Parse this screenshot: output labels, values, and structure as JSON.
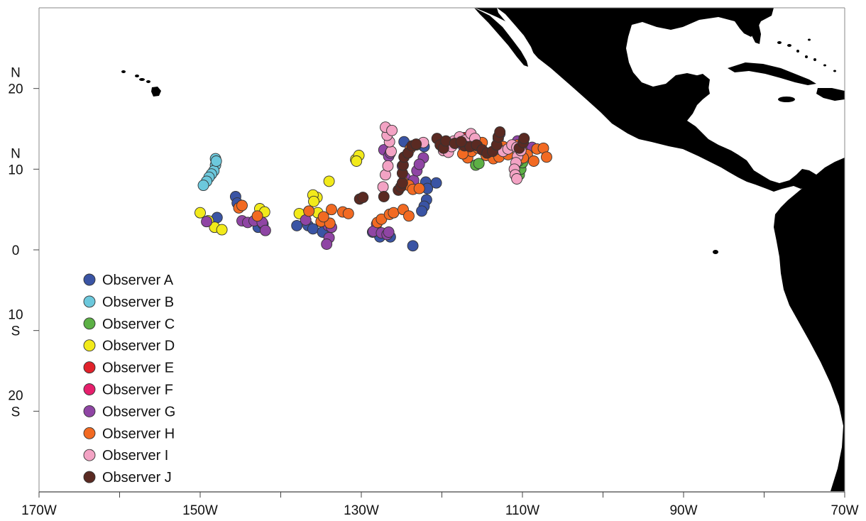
{
  "map": {
    "x_ticks": [
      "170W",
      "150W",
      "130W",
      "110W",
      "90W",
      "70W"
    ],
    "y_ticks": [
      {
        "top": "N",
        "bottom": "20",
        "lat": 20
      },
      {
        "top": "N",
        "bottom": "10",
        "lat": 10
      },
      {
        "top": "",
        "bottom": "0",
        "lat": 0
      },
      {
        "top": "10",
        "bottom": "S",
        "lat": -10
      },
      {
        "top": "20",
        "bottom": "S",
        "lat": -20
      }
    ],
    "land_color": "#000000",
    "extent": {
      "lon": [
        -170,
        -70
      ],
      "lat": [
        -30,
        30
      ]
    }
  },
  "legend": {
    "items": [
      {
        "label": "Observer A",
        "color": "#3a54a4"
      },
      {
        "label": "Observer B",
        "color": "#6cc8dc"
      },
      {
        "label": "Observer C",
        "color": "#5cb045"
      },
      {
        "label": "Observer D",
        "color": "#f2ea1a"
      },
      {
        "label": "Observer E",
        "color": "#e1222b"
      },
      {
        "label": "Observer F",
        "color": "#e61f6c"
      },
      {
        "label": "Observer G",
        "color": "#8f45a4"
      },
      {
        "label": "Observer H",
        "color": "#f26a22"
      },
      {
        "label": "Observer I",
        "color": "#f3a3c4"
      },
      {
        "label": "Observer J",
        "color": "#5a2a22"
      }
    ]
  },
  "observations": {
    "Observer A": [
      [
        -147.9,
        4.0
      ],
      [
        -145.6,
        6.6
      ],
      [
        -145.4,
        5.8
      ],
      [
        -142.8,
        2.8
      ],
      [
        -142.2,
        3.2
      ],
      [
        -138.0,
        3.0
      ],
      [
        -136.6,
        3.0
      ],
      [
        -136.0,
        2.6
      ],
      [
        -134.8,
        2.2
      ],
      [
        -124.7,
        13.4
      ],
      [
        -122.2,
        12.8
      ],
      [
        -122.0,
        8.4
      ],
      [
        -121.8,
        7.6
      ],
      [
        -121.9,
        6.2
      ],
      [
        -122.2,
        5.4
      ],
      [
        -122.5,
        4.8
      ],
      [
        -120.7,
        8.3
      ],
      [
        -126.4,
        1.6
      ],
      [
        -127.7,
        1.6
      ],
      [
        -123.6,
        0.5
      ],
      [
        -128.6,
        2.2
      ]
    ],
    "Observer B": [
      [
        -148.1,
        11.3
      ],
      [
        -148.1,
        10.5
      ],
      [
        -148.3,
        9.8
      ],
      [
        -148.6,
        9.4
      ],
      [
        -148.9,
        9.0
      ],
      [
        -149.2,
        8.5
      ],
      [
        -149.6,
        8.0
      ],
      [
        -148.0,
        11.0
      ]
    ],
    "Observer C": [
      [
        -115.8,
        10.5
      ],
      [
        -115.4,
        10.7
      ],
      [
        -110.4,
        9.3
      ],
      [
        -110.2,
        10.0
      ],
      [
        -110.0,
        10.8
      ],
      [
        -110.5,
        11.0
      ]
    ],
    "Observer D": [
      [
        -150.0,
        4.6
      ],
      [
        -149.0,
        3.6
      ],
      [
        -148.2,
        2.8
      ],
      [
        -147.3,
        2.5
      ],
      [
        -142.6,
        5.1
      ],
      [
        -142.0,
        4.7
      ],
      [
        -137.7,
        4.5
      ],
      [
        -136.5,
        4.8
      ],
      [
        -135.4,
        4.6
      ],
      [
        -135.5,
        6.5
      ],
      [
        -136.0,
        6.8
      ],
      [
        -134.0,
        8.5
      ],
      [
        -130.7,
        11.2
      ],
      [
        -130.3,
        11.7
      ],
      [
        -130.6,
        11.0
      ],
      [
        -135.9,
        6.0
      ]
    ],
    "Observer E": [
      [
        -117.2,
        13.9
      ],
      [
        -116.6,
        13.8
      ],
      [
        -117.6,
        13.3
      ]
    ],
    "Observer F": [
      [
        -117.0,
        13.6
      ],
      [
        -116.3,
        13.3
      ]
    ],
    "Observer G": [
      [
        -149.2,
        3.5
      ],
      [
        -144.8,
        3.6
      ],
      [
        -144.1,
        3.4
      ],
      [
        -143.3,
        3.6
      ],
      [
        -142.3,
        3.4
      ],
      [
        -141.9,
        2.4
      ],
      [
        -136.9,
        3.7
      ],
      [
        -134.1,
        3.0
      ],
      [
        -134.0,
        1.5
      ],
      [
        -134.3,
        0.7
      ],
      [
        -133.7,
        2.8
      ],
      [
        -128.1,
        3.2
      ],
      [
        -128.5,
        2.3
      ],
      [
        -127.5,
        2.1
      ],
      [
        -126.8,
        1.9
      ],
      [
        -126.6,
        2.2
      ],
      [
        -127.2,
        12.4
      ],
      [
        -126.6,
        11.6
      ],
      [
        -126.4,
        12.0
      ],
      [
        -124.9,
        10.4
      ],
      [
        -124.6,
        9.0
      ],
      [
        -123.5,
        8.6
      ],
      [
        -123.1,
        9.8
      ],
      [
        -122.3,
        11.4
      ],
      [
        -122.8,
        10.6
      ],
      [
        -112.8,
        14.4
      ],
      [
        -113.0,
        13.8
      ],
      [
        -110.6,
        13.5
      ],
      [
        -108.8,
        12.7
      ],
      [
        -117.3,
        12.8
      ]
    ],
    "Observer H": [
      [
        -145.2,
        5.2
      ],
      [
        -144.8,
        5.5
      ],
      [
        -142.9,
        4.2
      ],
      [
        -136.5,
        4.8
      ],
      [
        -135.0,
        3.5
      ],
      [
        -133.9,
        3.3
      ],
      [
        -134.7,
        4.1
      ],
      [
        -133.7,
        5.0
      ],
      [
        -132.3,
        4.7
      ],
      [
        -131.6,
        4.5
      ],
      [
        -128.0,
        3.4
      ],
      [
        -127.5,
        3.8
      ],
      [
        -126.5,
        4.4
      ],
      [
        -126.0,
        4.6
      ],
      [
        -124.8,
        5.0
      ],
      [
        -124.1,
        4.2
      ],
      [
        -124.8,
        8.4
      ],
      [
        -124.1,
        8.0
      ],
      [
        -123.6,
        7.5
      ],
      [
        -122.8,
        7.6
      ],
      [
        -123.9,
        12.6
      ],
      [
        -123.2,
        13.0
      ],
      [
        -116.8,
        11.4
      ],
      [
        -116.3,
        12.2
      ],
      [
        -115.5,
        12.6
      ],
      [
        -115.0,
        13.3
      ],
      [
        -116.0,
        13.5
      ],
      [
        -114.5,
        11.7
      ],
      [
        -113.6,
        11.3
      ],
      [
        -112.9,
        11.5
      ],
      [
        -112.4,
        12.8
      ],
      [
        -111.8,
        11.8
      ],
      [
        -110.6,
        13.0
      ],
      [
        -110.0,
        12.2
      ],
      [
        -109.4,
        11.8
      ],
      [
        -109.9,
        11.4
      ],
      [
        -108.2,
        12.5
      ],
      [
        -107.4,
        12.6
      ],
      [
        -107.0,
        11.5
      ],
      [
        -108.6,
        11.0
      ],
      [
        -116.6,
        12.8
      ],
      [
        -117.4,
        11.9
      ]
    ],
    "Observer I": [
      [
        -127.3,
        7.8
      ],
      [
        -127.0,
        9.3
      ],
      [
        -126.7,
        10.4
      ],
      [
        -126.3,
        12.2
      ],
      [
        -126.5,
        13.4
      ],
      [
        -126.8,
        14.2
      ],
      [
        -127.0,
        15.2
      ],
      [
        -126.2,
        14.8
      ],
      [
        -122.3,
        13.3
      ],
      [
        -119.8,
        12.3
      ],
      [
        -119.2,
        12.1
      ],
      [
        -118.8,
        12.8
      ],
      [
        -118.5,
        13.5
      ],
      [
        -117.8,
        14.0
      ],
      [
        -117.1,
        13.6
      ],
      [
        -116.4,
        14.4
      ],
      [
        -115.9,
        13.8
      ],
      [
        -115.6,
        12.9
      ],
      [
        -113.0,
        12.5
      ],
      [
        -112.4,
        12.2
      ],
      [
        -111.8,
        12.5
      ],
      [
        -111.3,
        13.0
      ],
      [
        -110.7,
        12.7
      ],
      [
        -110.6,
        11.6
      ],
      [
        -110.8,
        10.8
      ],
      [
        -111.0,
        10.0
      ],
      [
        -110.9,
        9.3
      ],
      [
        -110.7,
        8.8
      ],
      [
        -110.2,
        12.3
      ]
    ],
    "Observer J": [
      [
        -130.2,
        6.3
      ],
      [
        -129.8,
        6.5
      ],
      [
        -127.2,
        6.6
      ],
      [
        -125.4,
        7.4
      ],
      [
        -125.1,
        7.8
      ],
      [
        -124.9,
        8.3
      ],
      [
        -124.9,
        9.5
      ],
      [
        -124.8,
        10.5
      ],
      [
        -124.7,
        11.5
      ],
      [
        -124.2,
        12.0
      ],
      [
        -123.7,
        12.9
      ],
      [
        -123.2,
        13.1
      ],
      [
        -120.6,
        13.8
      ],
      [
        -120.2,
        13.0
      ],
      [
        -119.8,
        12.6
      ],
      [
        -119.5,
        13.5
      ],
      [
        -118.4,
        13.2
      ],
      [
        -117.2,
        12.9
      ],
      [
        -116.5,
        12.8
      ],
      [
        -115.7,
        13.0
      ],
      [
        -115.0,
        12.4
      ],
      [
        -114.4,
        12.0
      ],
      [
        -113.7,
        12.2
      ],
      [
        -113.2,
        13.0
      ],
      [
        -113.0,
        14.0
      ],
      [
        -112.8,
        14.6
      ],
      [
        -110.4,
        12.6
      ],
      [
        -109.9,
        13.3
      ],
      [
        -109.8,
        13.8
      ],
      [
        -117.6,
        13.4
      ]
    ]
  }
}
